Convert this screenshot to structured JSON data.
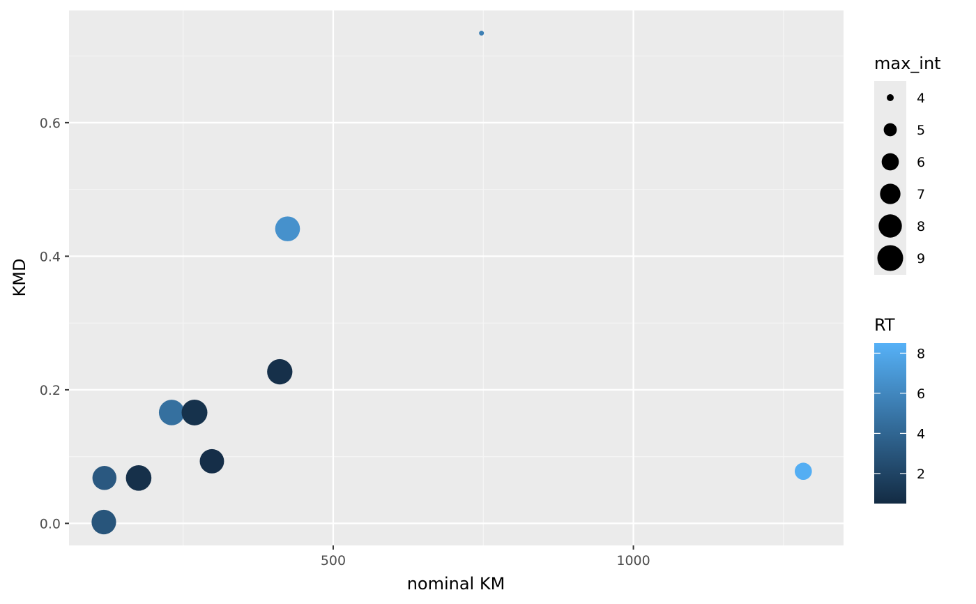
{
  "chart_data": {
    "type": "scatter",
    "title": "",
    "xlabel": "nominal KM",
    "ylabel": "KMD",
    "xlim": [
      60,
      1350
    ],
    "ylim": [
      -0.033,
      0.768
    ],
    "xticks": [
      500,
      1000
    ],
    "xtick_labels": [
      "500",
      "1000"
    ],
    "yticks": [
      0.0,
      0.2,
      0.4,
      0.6
    ],
    "ytick_labels": [
      "0.0",
      "0.2",
      "0.4",
      "0.6"
    ],
    "grid": true,
    "legend_position": "right",
    "points": [
      {
        "x": 747,
        "y": 0.734,
        "max_int": 3.8,
        "rt": 5.5
      },
      {
        "x": 424,
        "y": 0.441,
        "max_int": 8.6,
        "rt": 6.6
      },
      {
        "x": 411,
        "y": 0.227,
        "max_int": 8.8,
        "rt": 0.8
      },
      {
        "x": 231,
        "y": 0.166,
        "max_int": 8.9,
        "rt": 4.6
      },
      {
        "x": 269,
        "y": 0.166,
        "max_int": 9.0,
        "rt": 0.9
      },
      {
        "x": 298,
        "y": 0.093,
        "max_int": 8.4,
        "rt": 0.7
      },
      {
        "x": 119,
        "y": 0.068,
        "max_int": 8.3,
        "rt": 3.2
      },
      {
        "x": 176,
        "y": 0.068,
        "max_int": 8.9,
        "rt": 0.8
      },
      {
        "x": 118,
        "y": 0.002,
        "max_int": 8.5,
        "rt": 3.0
      },
      {
        "x": 1283,
        "y": 0.078,
        "max_int": 6.0,
        "rt": 8.3
      }
    ],
    "size_legend": {
      "title": "max_int",
      "values": [
        4,
        5,
        6,
        7,
        8,
        9
      ],
      "labels": [
        "4",
        "5",
        "6",
        "7",
        "8",
        "9"
      ]
    },
    "color_legend": {
      "title": "RT",
      "range": [
        0.5,
        8.5
      ],
      "ticks": [
        2,
        4,
        6,
        8
      ],
      "labels": [
        "2",
        "4",
        "6",
        "8"
      ],
      "low_color": "#132b43",
      "high_color": "#56b1f7"
    }
  },
  "colors": {
    "panel_background": "#ebebeb",
    "grid_major": "#ffffff",
    "grid_minor": "#f5f5f5"
  }
}
